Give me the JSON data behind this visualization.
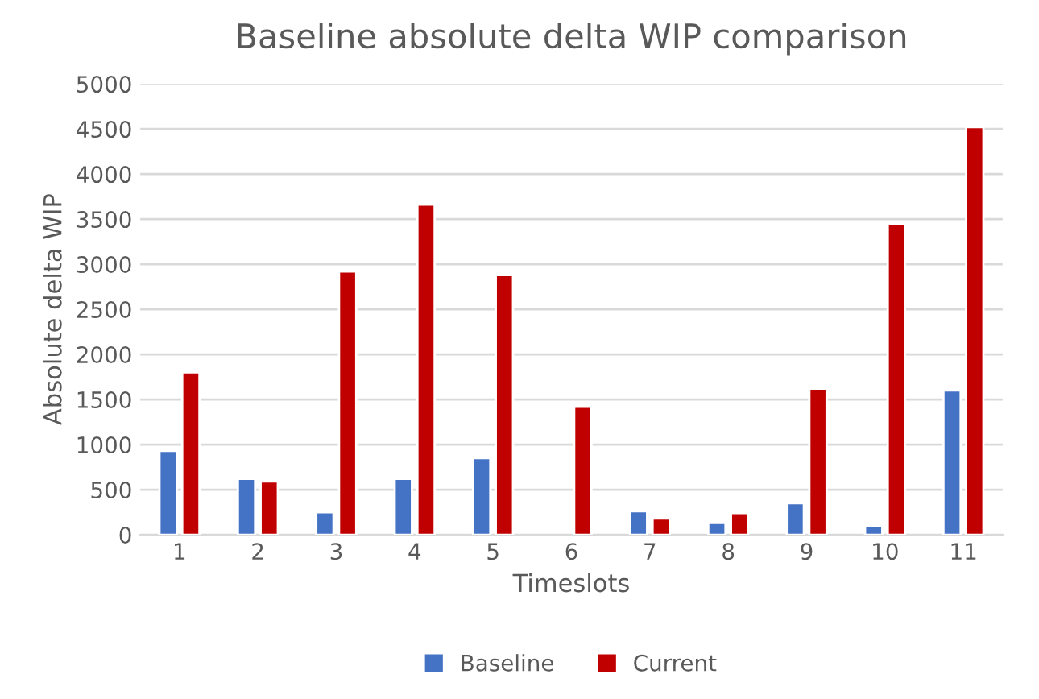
{
  "chart_data": {
    "type": "bar",
    "title": "Baseline absolute delta WIP comparison",
    "xlabel": "Timeslots",
    "ylabel": "Absolute delta WIP",
    "categories": [
      "1",
      "2",
      "3",
      "4",
      "5",
      "6",
      "7",
      "8",
      "9",
      "10",
      "11"
    ],
    "series": [
      {
        "name": "Baseline",
        "color": "#4472c4",
        "values": [
          930,
          620,
          250,
          620,
          850,
          null,
          260,
          130,
          350,
          100,
          1600
        ]
      },
      {
        "name": "Current",
        "color": "#c00000",
        "values": [
          1800,
          590,
          2920,
          3660,
          2880,
          1420,
          180,
          240,
          1620,
          3450,
          4520
        ]
      }
    ],
    "ylim": [
      0,
      5000
    ],
    "yticks": [
      0,
      500,
      1000,
      1500,
      2000,
      2500,
      3000,
      3500,
      4000,
      4500,
      5000
    ],
    "grid": "y",
    "legend": "bottom"
  }
}
